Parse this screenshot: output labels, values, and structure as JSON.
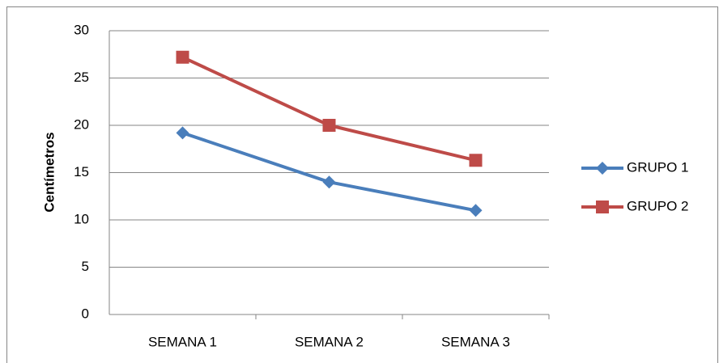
{
  "chart_data": {
    "type": "line",
    "y_label": "Centímetros",
    "categories": [
      "SEMANA 1",
      "SEMANA 2",
      "SEMANA 3"
    ],
    "series": [
      {
        "name": "GRUPO 1",
        "color": "#4a7ebb",
        "marker": "diamond",
        "values": [
          19.2,
          14,
          11
        ]
      },
      {
        "name": "GRUPO 2",
        "color": "#be4b48",
        "marker": "square",
        "values": [
          27.2,
          20,
          16.3
        ]
      }
    ],
    "ylim": [
      0,
      30
    ],
    "yticks": [
      0,
      5,
      10,
      15,
      20,
      25,
      30
    ],
    "grid": true,
    "legend": "right"
  }
}
